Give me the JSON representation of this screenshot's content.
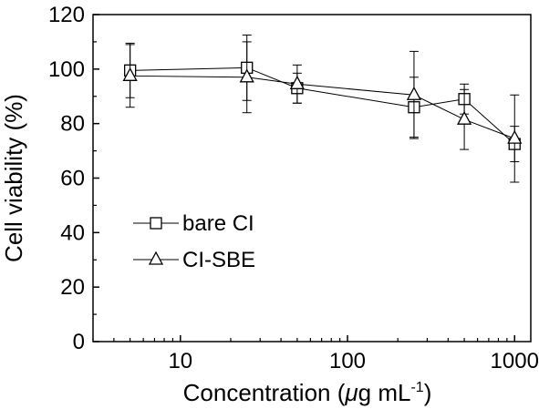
{
  "chart_data": {
    "type": "line",
    "xscale": "log",
    "xlim": [
      3,
      1250
    ],
    "ylim": [
      0,
      120
    ],
    "xticks": [
      10,
      100,
      1000
    ],
    "xtick_labels": [
      "10",
      "100",
      "1000"
    ],
    "yticks": [
      0,
      20,
      40,
      60,
      80,
      100,
      120
    ],
    "ytick_labels": [
      "0",
      "20",
      "40",
      "60",
      "80",
      "100",
      "120"
    ],
    "ylabel": "Cell viability (%)",
    "xlabel_prefix": "Concentration (",
    "xlabel_mu": "μ",
    "xlabel_unit": "g mL",
    "xlabel_sup": "-1",
    "xlabel_suffix": ")",
    "grid": false,
    "legend_placement": "center-left",
    "line_color": "#000000",
    "series": [
      {
        "name": "bare CI",
        "marker": "square",
        "x": [
          5,
          25,
          50,
          250,
          500,
          1000
        ],
        "y": [
          99.5,
          100.5,
          93,
          86,
          89,
          72.5
        ],
        "error": [
          10,
          12,
          5.5,
          11,
          5.5,
          6.5
        ]
      },
      {
        "name": "CI-SBE",
        "marker": "triangle",
        "x": [
          5,
          25,
          50,
          250,
          500,
          1000
        ],
        "y": [
          97.5,
          97,
          94.5,
          90.5,
          81.5,
          74.5
        ],
        "error": [
          11.5,
          13,
          7,
          16,
          11,
          16
        ]
      }
    ]
  }
}
